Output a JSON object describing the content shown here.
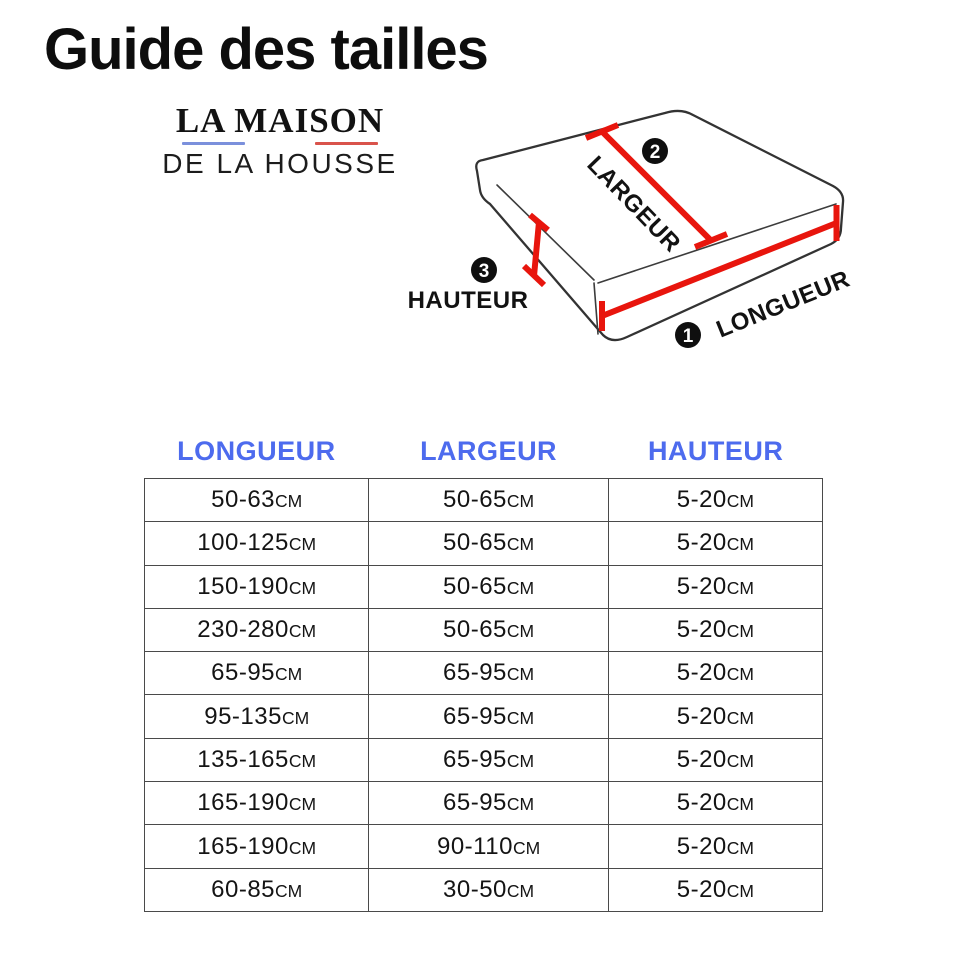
{
  "page": {
    "title": "Guide des tailles"
  },
  "brand": {
    "name": "LA MAISON",
    "subtitle": "DE LA HOUSSE",
    "flag_blue": "#7b90dc",
    "flag_red": "#d9534b"
  },
  "diagram": {
    "accent_red": "#e8150d",
    "measures": {
      "longueur": {
        "badge": "1",
        "label": "LONGUEUR"
      },
      "largeur": {
        "badge": "2",
        "label": "LARGEUR"
      },
      "hauteur": {
        "badge": "3",
        "label": "HAUTEUR"
      }
    }
  },
  "table": {
    "header_color": "#4d6bee",
    "columns": [
      "LONGUEUR",
      "LARGEUR",
      "HAUTEUR"
    ],
    "unit": "CM",
    "rows": [
      [
        "50-63",
        "50-65",
        "5-20"
      ],
      [
        "100-125",
        "50-65",
        "5-20"
      ],
      [
        "150-190",
        "50-65",
        "5-20"
      ],
      [
        "230-280",
        "50-65",
        "5-20"
      ],
      [
        "65-95",
        "65-95",
        "5-20"
      ],
      [
        "95-135",
        "65-95",
        "5-20"
      ],
      [
        "135-165",
        "65-95",
        "5-20"
      ],
      [
        "165-190",
        "65-95",
        "5-20"
      ],
      [
        "165-190",
        "90-110",
        "5-20"
      ],
      [
        "60-85",
        "30-50",
        "5-20"
      ]
    ]
  }
}
